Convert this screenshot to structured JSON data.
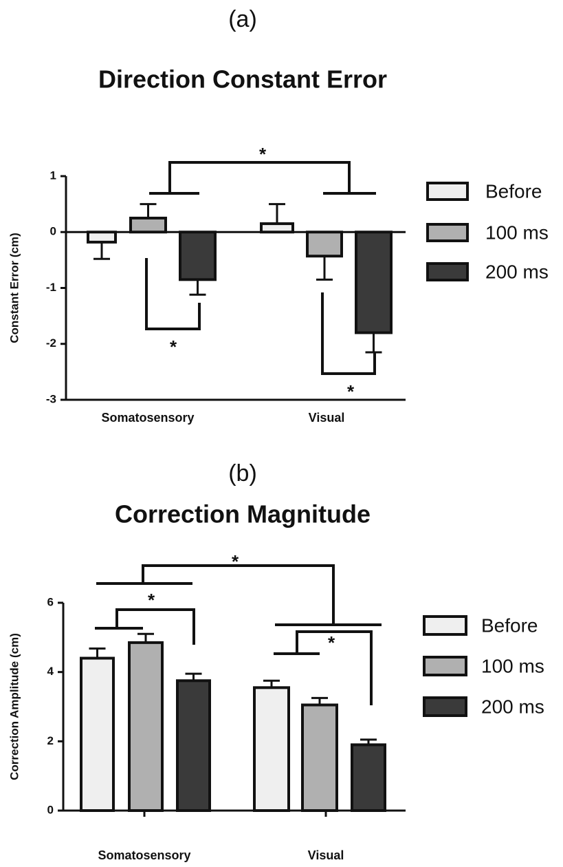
{
  "chart_data": [
    {
      "type": "bar",
      "label": "(a)",
      "title": "Direction Constant Error",
      "ylabel": "Constant Error (cm)",
      "categories": [
        "Somatosensory",
        "Visual"
      ],
      "series": [
        {
          "name": "Before",
          "color": "#efefef",
          "values": [
            -0.18,
            0.15
          ],
          "errors": [
            0.3,
            0.35
          ]
        },
        {
          "name": "100 ms",
          "color": "#b0b0b0",
          "values": [
            0.25,
            -0.43
          ],
          "errors": [
            0.25,
            0.42
          ]
        },
        {
          "name": "200 ms",
          "color": "#3a3a3a",
          "values": [
            -0.85,
            -1.8
          ],
          "errors": [
            0.27,
            0.35
          ]
        }
      ],
      "ylim": [
        -3,
        1
      ],
      "yticks": [
        -3,
        -2,
        -1,
        0,
        1
      ],
      "annotations": [
        "*",
        "*",
        "*"
      ]
    },
    {
      "type": "bar",
      "label": "(b)",
      "title": "Correction Magnitude",
      "ylabel": "Correction Amplitude (cm)",
      "categories": [
        "Somatosensory",
        "Visual"
      ],
      "series": [
        {
          "name": "Before",
          "color": "#efefef",
          "values": [
            4.4,
            3.55
          ],
          "errors": [
            0.28,
            0.2
          ]
        },
        {
          "name": "100 ms",
          "color": "#b0b0b0",
          "values": [
            4.85,
            3.05
          ],
          "errors": [
            0.25,
            0.2
          ]
        },
        {
          "name": "200 ms",
          "color": "#3a3a3a",
          "values": [
            3.75,
            1.9
          ],
          "errors": [
            0.2,
            0.15
          ]
        }
      ],
      "ylim": [
        0,
        6
      ],
      "yticks": [
        0,
        2,
        4,
        6
      ],
      "annotations": [
        "*",
        "*",
        "*"
      ]
    }
  ]
}
